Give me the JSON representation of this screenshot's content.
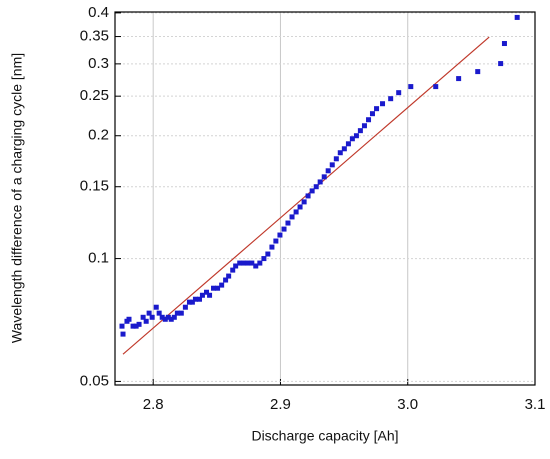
{
  "chart_data": {
    "type": "scatter",
    "xlabel": "Discharge capacity [Ah]",
    "ylabel": "Wavelength difference of a charging cycle [nm]",
    "xlim": [
      2.77,
      3.1
    ],
    "ylim": [
      0.049,
      0.402
    ],
    "ylog": true,
    "grid": true,
    "xticks": [
      2.8,
      2.9,
      {
        "value": 3.0,
        "label": "3.0"
      },
      3.1
    ],
    "yticks": [
      0.05,
      0.1,
      0.15,
      0.2,
      0.25,
      0.3,
      0.35,
      0.4
    ],
    "series": [
      {
        "color": "#1a1acc",
        "x": [
          2.7755,
          2.7763,
          2.7794,
          2.781,
          2.7842,
          2.7866,
          2.7889,
          2.7921,
          2.7945,
          2.7968,
          2.7992,
          2.8024,
          2.8047,
          2.8071,
          2.8095,
          2.8119,
          2.8142,
          2.8166,
          2.819,
          2.8221,
          2.8253,
          2.8285,
          2.8308,
          2.8332,
          2.8364,
          2.8387,
          2.8419,
          2.8443,
          2.8474,
          2.8506,
          2.8538,
          2.8569,
          2.8593,
          2.8625,
          2.8648,
          2.868,
          2.8711,
          2.8743,
          2.8775,
          2.8806,
          2.8838,
          2.887,
          2.8901,
          2.8933,
          2.8964,
          2.8996,
          2.9028,
          2.9059,
          2.9091,
          2.9123,
          2.9154,
          2.9186,
          2.9217,
          2.9249,
          2.9281,
          2.9312,
          2.9344,
          2.9375,
          2.9407,
          2.9439,
          2.947,
          2.9502,
          2.9534,
          2.9565,
          2.9597,
          2.9628,
          2.966,
          2.9692,
          2.9723,
          2.9755,
          2.9802,
          2.9866,
          2.9929,
          3.0024,
          3.022,
          3.04,
          3.055,
          3.073,
          3.076,
          3.086
        ],
        "values": [
          0.0683,
          0.0653,
          0.0702,
          0.071,
          0.0683,
          0.0683,
          0.069,
          0.0718,
          0.0702,
          0.0735,
          0.0718,
          0.076,
          0.0735,
          0.0718,
          0.071,
          0.0718,
          0.071,
          0.0718,
          0.0735,
          0.0735,
          0.076,
          0.0782,
          0.0782,
          0.0795,
          0.0795,
          0.0813,
          0.0827,
          0.0813,
          0.0846,
          0.0846,
          0.0861,
          0.0886,
          0.0906,
          0.0937,
          0.0959,
          0.0975,
          0.0975,
          0.0975,
          0.0975,
          0.0959,
          0.0975,
          0.1,
          0.1026,
          0.1067,
          0.1104,
          0.1142,
          0.1181,
          0.1222,
          0.1265,
          0.1301,
          0.1338,
          0.1377,
          0.1424,
          0.1465,
          0.15,
          0.1541,
          0.1586,
          0.1641,
          0.1697,
          0.1756,
          0.1817,
          0.1858,
          0.1911,
          0.1966,
          0.2,
          0.2058,
          0.2116,
          0.2189,
          0.2265,
          0.233,
          0.2396,
          0.2465,
          0.255,
          0.2639,
          0.2639,
          0.2761,
          0.2872,
          0.3005,
          0.3365,
          0.3899
        ]
      }
    ],
    "fit_line": {
      "color": "#c0392b",
      "x": [
        2.7763,
        3.064
      ],
      "values": [
        0.0583,
        0.349
      ]
    }
  }
}
